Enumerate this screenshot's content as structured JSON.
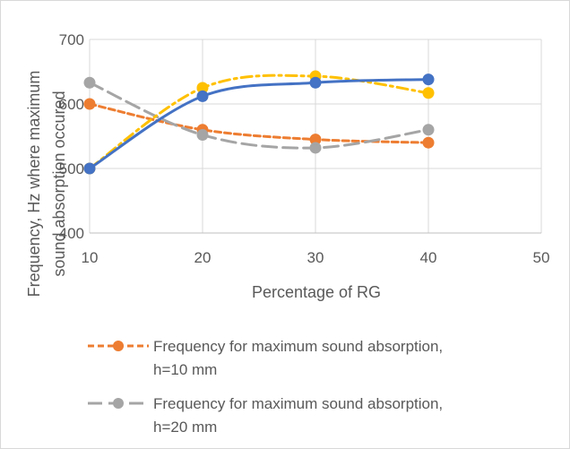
{
  "chart_data": {
    "type": "line",
    "title": "",
    "xlabel": "Percentage of RG",
    "ylabel_lines": [
      "Frequency, Hz where maximum",
      "sound absorption occured"
    ],
    "xlim": [
      10,
      50
    ],
    "ylim": [
      400,
      700
    ],
    "x_ticks": [
      10,
      20,
      30,
      40,
      50
    ],
    "y_ticks": [
      400,
      500,
      600,
      700
    ],
    "grid": true,
    "legend_position": "bottom",
    "series": [
      {
        "name_lines": [
          "Frequency for maximum sound absorption,",
          "h=10 mm"
        ],
        "color": "#ED7D31",
        "dash": "short-dash",
        "x": [
          10,
          20,
          30,
          40
        ],
        "values": [
          600,
          560,
          545,
          540
        ]
      },
      {
        "name_lines": [
          "Frequency for maximum sound absorption,",
          "h=20 mm"
        ],
        "color": "#A5A5A5",
        "dash": "long-dash",
        "x": [
          10,
          20,
          30,
          40
        ],
        "values": [
          633,
          552,
          532,
          560
        ]
      },
      {
        "color": "#FFC000",
        "dash": "dash-dot",
        "x": [
          10,
          20,
          30,
          40
        ],
        "values": [
          500,
          625,
          643,
          617
        ]
      },
      {
        "color": "#4472C4",
        "dash": "solid",
        "x": [
          10,
          20,
          30,
          40
        ],
        "values": [
          500,
          612,
          633,
          638
        ]
      }
    ]
  }
}
